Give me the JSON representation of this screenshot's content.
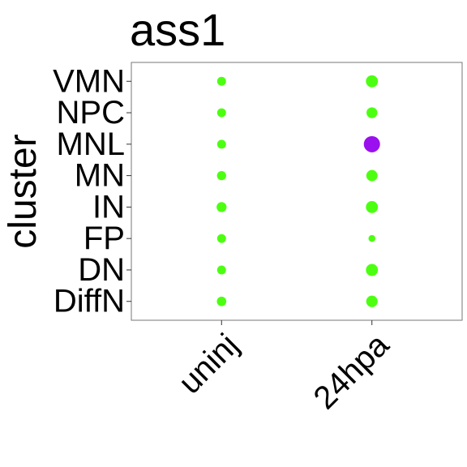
{
  "chart_data": {
    "type": "scatter",
    "title": "ass1",
    "xlabel": "",
    "ylabel": "cluster",
    "x_categories": [
      "uninj",
      "24hpa"
    ],
    "y_categories": [
      "VMN",
      "NPC",
      "MNL",
      "MN",
      "IN",
      "FP",
      "DN",
      "DiffN"
    ],
    "points": [
      {
        "x": "uninj",
        "y": "VMN",
        "size": 0.3,
        "color": "#4cff10"
      },
      {
        "x": "uninj",
        "y": "NPC",
        "size": 0.3,
        "color": "#4cff10"
      },
      {
        "x": "uninj",
        "y": "MNL",
        "size": 0.3,
        "color": "#4cff10"
      },
      {
        "x": "uninj",
        "y": "MN",
        "size": 0.32,
        "color": "#4cff10"
      },
      {
        "x": "uninj",
        "y": "IN",
        "size": 0.38,
        "color": "#4cff10"
      },
      {
        "x": "uninj",
        "y": "FP",
        "size": 0.3,
        "color": "#4cff10"
      },
      {
        "x": "uninj",
        "y": "DN",
        "size": 0.3,
        "color": "#4cff10"
      },
      {
        "x": "uninj",
        "y": "DiffN",
        "size": 0.34,
        "color": "#4cff10"
      },
      {
        "x": "24hpa",
        "y": "VMN",
        "size": 0.55,
        "color": "#4cff10"
      },
      {
        "x": "24hpa",
        "y": "NPC",
        "size": 0.45,
        "color": "#4cff10"
      },
      {
        "x": "24hpa",
        "y": "MNL",
        "size": 1.0,
        "color": "#9a10ee"
      },
      {
        "x": "24hpa",
        "y": "MN",
        "size": 0.48,
        "color": "#4cff10"
      },
      {
        "x": "24hpa",
        "y": "IN",
        "size": 0.55,
        "color": "#4cff10"
      },
      {
        "x": "24hpa",
        "y": "FP",
        "size": 0.18,
        "color": "#4cff10"
      },
      {
        "x": "24hpa",
        "y": "DN",
        "size": 0.55,
        "color": "#4cff10"
      },
      {
        "x": "24hpa",
        "y": "DiffN",
        "size": 0.5,
        "color": "#4cff10"
      }
    ],
    "grid": false,
    "legend": "none",
    "panel_border_color": "#777777"
  }
}
